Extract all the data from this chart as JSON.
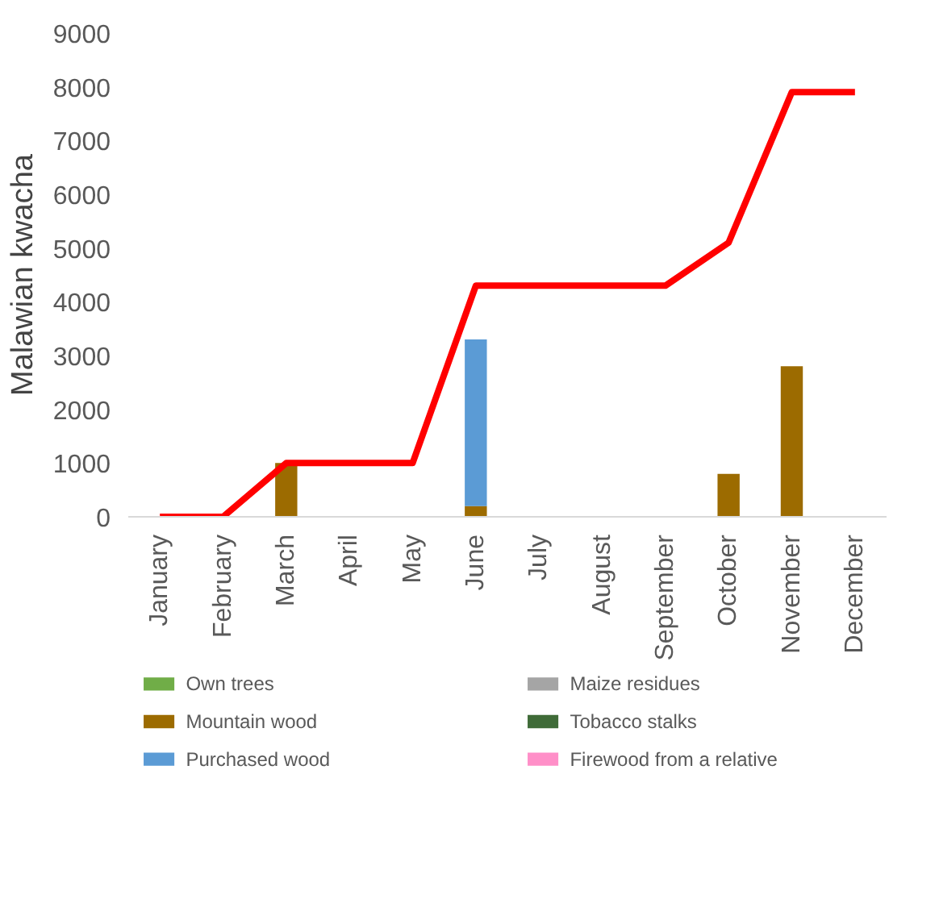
{
  "chart_data": {
    "type": "bar",
    "stacked": true,
    "ylabel": "Malawian kwacha",
    "categories": [
      "January",
      "February",
      "March",
      "April",
      "May",
      "June",
      "July",
      "August",
      "September",
      "October",
      "November",
      "December"
    ],
    "ylim": [
      0,
      9000
    ],
    "yticks": [
      0,
      1000,
      2000,
      3000,
      4000,
      5000,
      6000,
      7000,
      8000,
      9000
    ],
    "grid": false,
    "legend": "bottom",
    "series": [
      {
        "name": "Own trees",
        "color": "#70ad47",
        "values": [
          0,
          0,
          0,
          0,
          0,
          0,
          0,
          0,
          0,
          0,
          0,
          0
        ]
      },
      {
        "name": "Mountain wood",
        "color": "#9c6b00",
        "values": [
          0,
          0,
          1000,
          0,
          0,
          200,
          0,
          0,
          0,
          800,
          2800,
          0
        ]
      },
      {
        "name": "Purchased wood",
        "color": "#5b9bd5",
        "values": [
          0,
          0,
          0,
          0,
          0,
          3100,
          0,
          0,
          0,
          0,
          0,
          0
        ]
      },
      {
        "name": "Maize residues",
        "color": "#a5a5a5",
        "values": [
          0,
          0,
          0,
          0,
          0,
          0,
          0,
          0,
          0,
          0,
          0,
          0
        ]
      },
      {
        "name": "Tobacco stalks",
        "color": "#3f6b38",
        "values": [
          0,
          0,
          0,
          0,
          0,
          0,
          0,
          0,
          0,
          0,
          0,
          0
        ]
      },
      {
        "name": "Firewood from a relative",
        "color": "#ff8fc8",
        "values": [
          0,
          0,
          0,
          0,
          0,
          0,
          0,
          0,
          0,
          0,
          0,
          0
        ]
      },
      {
        "type": "line",
        "color": "#ff0000",
        "values": [
          0,
          0,
          1000,
          1000,
          1000,
          4300,
          4300,
          4300,
          4300,
          5100,
          7900,
          7900
        ]
      }
    ]
  }
}
